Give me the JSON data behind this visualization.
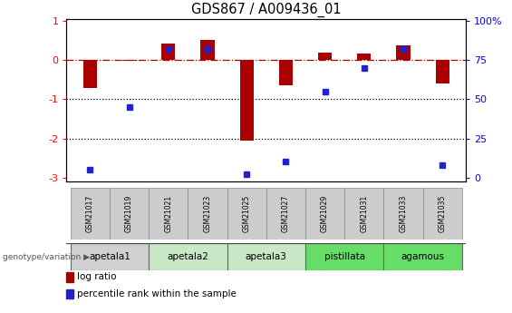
{
  "title": "GDS867 / A009436_01",
  "samples": [
    "GSM21017",
    "GSM21019",
    "GSM21021",
    "GSM21023",
    "GSM21025",
    "GSM21027",
    "GSM21029",
    "GSM21031",
    "GSM21033",
    "GSM21035"
  ],
  "log_ratio": [
    -0.72,
    -0.03,
    0.42,
    0.5,
    -2.05,
    -0.65,
    0.18,
    0.17,
    0.38,
    -0.6
  ],
  "percentile_rank": [
    5,
    45,
    82,
    82,
    2,
    10,
    55,
    70,
    82,
    8
  ],
  "groups": [
    {
      "label": "apetala1",
      "indices": [
        0,
        1
      ],
      "color": "#d0d0d0"
    },
    {
      "label": "apetala2",
      "indices": [
        2,
        3
      ],
      "color": "#c8e8c8"
    },
    {
      "label": "apetala3",
      "indices": [
        4,
        5
      ],
      "color": "#c8e8c8"
    },
    {
      "label": "pistillata",
      "indices": [
        6,
        7
      ],
      "color": "#66dd66"
    },
    {
      "label": "agamous",
      "indices": [
        8,
        9
      ],
      "color": "#66dd66"
    }
  ],
  "bar_color": "#AA0000",
  "dot_color": "#2222CC",
  "ylim": [
    -3.1,
    1.05
  ],
  "y_ticks_left": [
    1,
    0,
    -1,
    -2,
    -3
  ],
  "y_ticks_right": [
    100,
    75,
    50,
    25,
    0
  ],
  "right_y_positions": [
    1.0,
    0.0,
    -1.0,
    -2.0,
    -3.0
  ],
  "dotted_lines": [
    -1.0,
    -2.0
  ],
  "legend_items": [
    {
      "label": "log ratio",
      "color": "#AA0000"
    },
    {
      "label": "percentile rank within the sample",
      "color": "#2222CC"
    }
  ],
  "genotype_label": "genotype/variation",
  "bar_width": 0.35
}
